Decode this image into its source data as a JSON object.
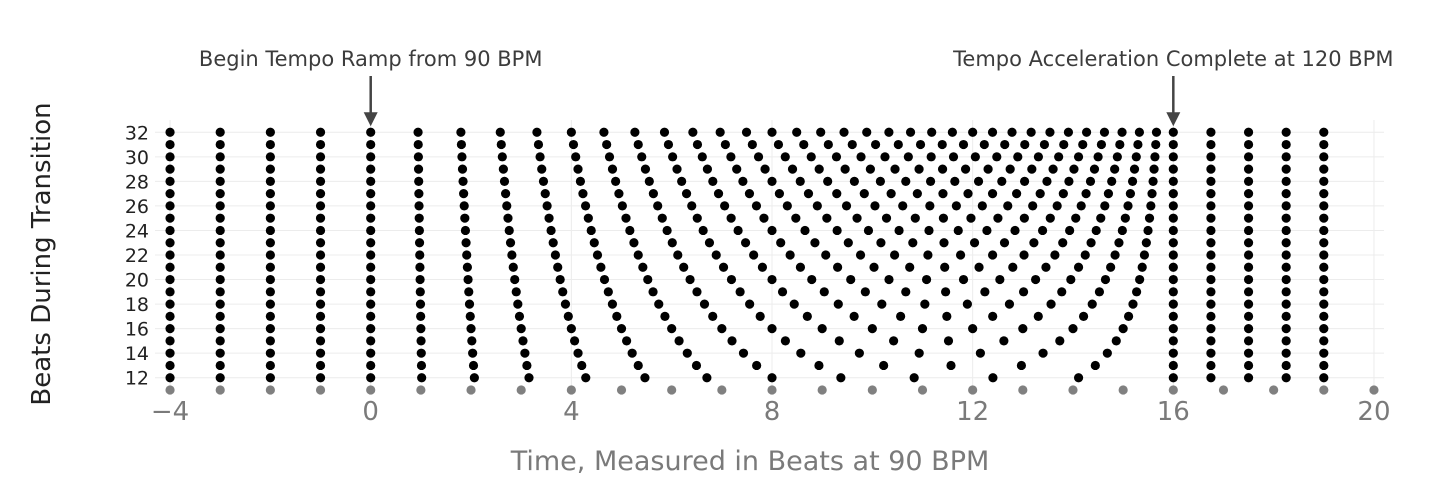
{
  "chart_data": {
    "type": "scatter",
    "xlabel": "Time, Measured in Beats at 90 BPM",
    "ylabel": "Beats During Transition",
    "xlim": [
      -4.3,
      20.2
    ],
    "ylim": [
      11,
      33
    ],
    "x_ticks": [
      -4,
      0,
      4,
      8,
      12,
      16,
      20
    ],
    "x_tick_labels": [
      "−4",
      "0",
      "4",
      "8",
      "12",
      "16",
      "20"
    ],
    "y_ticks": [
      12,
      14,
      16,
      18,
      20,
      22,
      24,
      26,
      28,
      30,
      32
    ],
    "y_tick_labels": [
      "12",
      "14",
      "16",
      "18",
      "20",
      "22",
      "24",
      "26",
      "28",
      "30",
      "32"
    ],
    "grid": true,
    "ramp_start_beat": 0,
    "ramp_end_beat": 16,
    "n_min": 12,
    "n_max": 32,
    "pre_ramp_beats": [
      -4,
      -3,
      -2,
      -1
    ],
    "post_ramp_beats": [
      16.75,
      17.5,
      18.25,
      19
    ],
    "reference_row_y": 11,
    "reference_beats": [
      -4,
      -3,
      -2,
      -1,
      0,
      1,
      2,
      3,
      4,
      5,
      6,
      7,
      8,
      9,
      10,
      11,
      12,
      13,
      14,
      15,
      16,
      17,
      18,
      19,
      20
    ],
    "series": [
      {
        "values_color": "#000000"
      },
      {
        "values_color": "#808080"
      }
    ],
    "annotations": [
      {
        "text": "Begin Tempo Ramp from 90 BPM",
        "x": 0,
        "y": 32
      },
      {
        "text": "Tempo Acceleration Complete at 120 BPM",
        "x": 16,
        "y": 32
      }
    ]
  }
}
